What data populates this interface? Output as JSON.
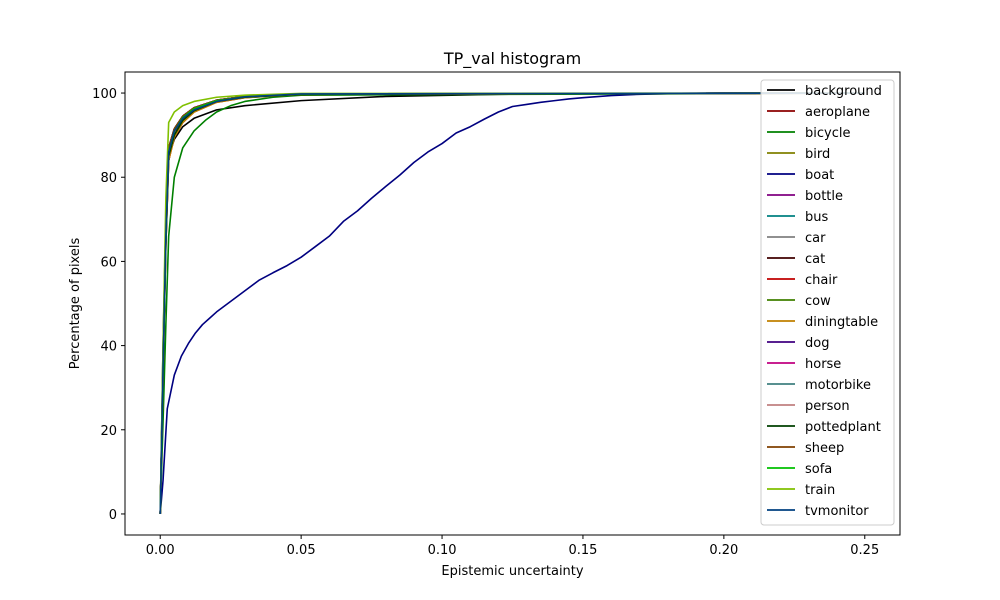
{
  "chart_data": {
    "type": "line",
    "title": "TP_val histogram",
    "xlabel": "Epistemic uncertainty",
    "ylabel": "Percentage of pixels",
    "xlim": [
      -0.0125,
      0.2625
    ],
    "ylim": [
      -5,
      105
    ],
    "xticks": [
      0.0,
      0.05,
      0.1,
      0.15,
      0.2,
      0.25
    ],
    "xtick_labels": [
      "0.00",
      "0.05",
      "0.10",
      "0.15",
      "0.20",
      "0.25"
    ],
    "yticks": [
      0,
      20,
      40,
      60,
      80,
      100
    ],
    "ytick_labels": [
      "0",
      "20",
      "40",
      "60",
      "80",
      "100"
    ],
    "grid": false,
    "legend_position": "upper-right",
    "series": [
      {
        "name": "background",
        "color": "#000000",
        "x": [
          0,
          0.001,
          0.002,
          0.003,
          0.005,
          0.008,
          0.012,
          0.02,
          0.03,
          0.05,
          0.08,
          0.12,
          0.2,
          0.25
        ],
        "y": [
          0,
          40,
          70,
          85,
          89,
          92,
          94,
          96,
          97,
          98.2,
          99.2,
          99.7,
          100,
          100
        ]
      },
      {
        "name": "aeroplane",
        "color": "#8b0000",
        "x": [
          0,
          0.001,
          0.002,
          0.003,
          0.005,
          0.008,
          0.012,
          0.02,
          0.03,
          0.05,
          0.25
        ],
        "y": [
          0,
          35,
          65,
          84,
          90,
          94,
          96,
          98,
          99,
          99.7,
          100
        ]
      },
      {
        "name": "bicycle",
        "color": "#008000",
        "x": [
          0,
          0.001,
          0.002,
          0.003,
          0.005,
          0.008,
          0.012,
          0.016,
          0.02,
          0.025,
          0.03,
          0.04,
          0.05,
          0.25
        ],
        "y": [
          0,
          22,
          45,
          66,
          80,
          87,
          91,
          93.5,
          95.5,
          97,
          98,
          99,
          99.5,
          100
        ]
      },
      {
        "name": "bird",
        "color": "#808000",
        "x": [
          0,
          0.001,
          0.002,
          0.003,
          0.005,
          0.008,
          0.012,
          0.02,
          0.03,
          0.05,
          0.25
        ],
        "y": [
          0,
          35,
          66,
          86,
          91,
          94.5,
          96.5,
          98.3,
          99.2,
          99.8,
          100
        ]
      },
      {
        "name": "boat",
        "color": "#000080",
        "x": [
          0,
          0.001,
          0.0025,
          0.005,
          0.0075,
          0.01,
          0.0125,
          0.015,
          0.0175,
          0.02,
          0.025,
          0.03,
          0.035,
          0.04,
          0.045,
          0.05,
          0.055,
          0.06,
          0.065,
          0.07,
          0.075,
          0.08,
          0.085,
          0.09,
          0.095,
          0.1,
          0.105,
          0.11,
          0.115,
          0.12,
          0.125,
          0.13,
          0.135,
          0.14,
          0.145,
          0.15,
          0.16,
          0.17,
          0.18,
          0.19,
          0.2,
          0.21,
          0.22,
          0.25
        ],
        "y": [
          0,
          8,
          25,
          33,
          37.5,
          40.5,
          43,
          45,
          46.5,
          48,
          50.5,
          53,
          55.5,
          57.3,
          59,
          61,
          63.5,
          66,
          69.5,
          72,
          75,
          77.8,
          80.5,
          83.5,
          86,
          88,
          90.5,
          92,
          93.8,
          95.5,
          96.8,
          97.3,
          97.8,
          98.2,
          98.6,
          98.9,
          99.4,
          99.7,
          99.85,
          99.95,
          100,
          100,
          100,
          100
        ]
      },
      {
        "name": "bottle",
        "color": "#800080",
        "x": [
          0,
          0.001,
          0.002,
          0.003,
          0.005,
          0.008,
          0.012,
          0.02,
          0.03,
          0.05,
          0.25
        ],
        "y": [
          0,
          35,
          66,
          86,
          91,
          94,
          96,
          98,
          99.1,
          99.8,
          100
        ]
      },
      {
        "name": "bus",
        "color": "#008080",
        "x": [
          0,
          0.001,
          0.002,
          0.003,
          0.005,
          0.008,
          0.012,
          0.02,
          0.03,
          0.05,
          0.25
        ],
        "y": [
          0,
          36,
          67,
          87,
          91.5,
          94.5,
          96.5,
          98.3,
          99.2,
          99.8,
          100
        ]
      },
      {
        "name": "car",
        "color": "#808080",
        "x": [
          0,
          0.001,
          0.002,
          0.003,
          0.005,
          0.008,
          0.012,
          0.02,
          0.03,
          0.05,
          0.25
        ],
        "y": [
          0,
          35,
          66,
          86,
          91,
          94.2,
          96.3,
          98.2,
          99.1,
          99.8,
          100
        ]
      },
      {
        "name": "cat",
        "color": "#400000",
        "x": [
          0,
          0.001,
          0.002,
          0.003,
          0.005,
          0.008,
          0.012,
          0.02,
          0.03,
          0.05,
          0.25
        ],
        "y": [
          0,
          36,
          67,
          87,
          91.5,
          94.5,
          96.5,
          98.3,
          99.2,
          99.8,
          100
        ]
      },
      {
        "name": "chair",
        "color": "#c00000",
        "x": [
          0,
          0.001,
          0.002,
          0.003,
          0.005,
          0.008,
          0.012,
          0.02,
          0.03,
          0.05,
          0.25
        ],
        "y": [
          0,
          34,
          64,
          84,
          89.5,
          93,
          95.5,
          97.8,
          98.9,
          99.7,
          100
        ]
      },
      {
        "name": "cow",
        "color": "#408000",
        "x": [
          0,
          0.001,
          0.002,
          0.003,
          0.005,
          0.008,
          0.012,
          0.02,
          0.03,
          0.05,
          0.25
        ],
        "y": [
          0,
          36,
          67,
          87,
          91.5,
          94.5,
          96.5,
          98.3,
          99.2,
          99.8,
          100
        ]
      },
      {
        "name": "diningtable",
        "color": "#c08000",
        "x": [
          0,
          0.001,
          0.002,
          0.003,
          0.005,
          0.008,
          0.012,
          0.02,
          0.03,
          0.05,
          0.25
        ],
        "y": [
          0,
          34,
          64,
          84,
          89.5,
          93,
          95.5,
          97.8,
          98.9,
          99.7,
          100
        ]
      },
      {
        "name": "dog",
        "color": "#400080",
        "x": [
          0,
          0.001,
          0.002,
          0.003,
          0.005,
          0.008,
          0.012,
          0.02,
          0.03,
          0.05,
          0.25
        ],
        "y": [
          0,
          36,
          67,
          87,
          91.5,
          94.5,
          96.5,
          98.3,
          99.2,
          99.8,
          100
        ]
      },
      {
        "name": "horse",
        "color": "#c00080",
        "x": [
          0,
          0.001,
          0.002,
          0.003,
          0.005,
          0.008,
          0.012,
          0.02,
          0.03,
          0.05,
          0.25
        ],
        "y": [
          0,
          36,
          67,
          87,
          91.5,
          94.5,
          96.5,
          98.3,
          99.2,
          99.8,
          100
        ]
      },
      {
        "name": "motorbike",
        "color": "#408080",
        "x": [
          0,
          0.001,
          0.002,
          0.003,
          0.005,
          0.008,
          0.012,
          0.02,
          0.03,
          0.05,
          0.25
        ],
        "y": [
          0,
          35,
          66,
          86,
          91,
          94.2,
          96.3,
          98.2,
          99.1,
          99.8,
          100
        ]
      },
      {
        "name": "person",
        "color": "#c08080",
        "x": [
          0,
          0.001,
          0.002,
          0.003,
          0.005,
          0.008,
          0.012,
          0.02,
          0.03,
          0.05,
          0.25
        ],
        "y": [
          0,
          35,
          66,
          86,
          91,
          94.2,
          96.3,
          98.2,
          99.1,
          99.8,
          100
        ]
      },
      {
        "name": "pottedplant",
        "color": "#004000",
        "x": [
          0,
          0.001,
          0.002,
          0.003,
          0.005,
          0.008,
          0.012,
          0.02,
          0.03,
          0.05,
          0.25
        ],
        "y": [
          0,
          34,
          64,
          85,
          90,
          93.5,
          95.8,
          98,
          99,
          99.7,
          100
        ]
      },
      {
        "name": "sheep",
        "color": "#804000",
        "x": [
          0,
          0.001,
          0.002,
          0.003,
          0.005,
          0.008,
          0.012,
          0.02,
          0.03,
          0.05,
          0.25
        ],
        "y": [
          0,
          36,
          67,
          87,
          91.5,
          94.5,
          96.5,
          98.3,
          99.2,
          99.8,
          100
        ]
      },
      {
        "name": "sofa",
        "color": "#00c000",
        "x": [
          0,
          0.001,
          0.002,
          0.003,
          0.005,
          0.008,
          0.012,
          0.02,
          0.03,
          0.05,
          0.25
        ],
        "y": [
          0,
          35,
          66,
          86,
          91,
          94.2,
          96.3,
          98.2,
          99.1,
          99.8,
          100
        ]
      },
      {
        "name": "train",
        "color": "#80c000",
        "x": [
          0,
          0.001,
          0.002,
          0.003,
          0.005,
          0.008,
          0.012,
          0.02,
          0.03,
          0.05,
          0.25
        ],
        "y": [
          0,
          40,
          75,
          93,
          95.5,
          97,
          98,
          99,
          99.5,
          99.9,
          100
        ]
      },
      {
        "name": "tvmonitor",
        "color": "#004080",
        "x": [
          0,
          0.001,
          0.002,
          0.003,
          0.005,
          0.008,
          0.012,
          0.02,
          0.03,
          0.05,
          0.25
        ],
        "y": [
          0,
          35,
          66,
          86,
          91,
          94,
          96,
          98,
          99.1,
          99.8,
          100
        ]
      }
    ]
  }
}
